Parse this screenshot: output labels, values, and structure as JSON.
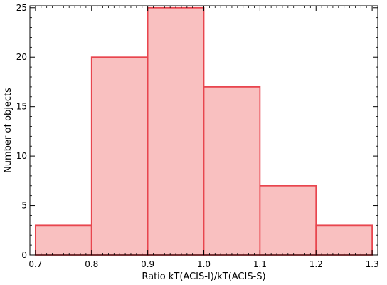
{
  "chart_data": {
    "type": "bar",
    "title": "",
    "xlabel": "Ratio kT(ACIS-I)/kT(ACIS-S)",
    "ylabel": "Number of objects",
    "bins": [
      {
        "x0": 0.7,
        "x1": 0.8,
        "value": 3
      },
      {
        "x0": 0.8,
        "x1": 0.9,
        "value": 20
      },
      {
        "x0": 0.9,
        "x1": 1.0,
        "value": 25
      },
      {
        "x0": 1.0,
        "x1": 1.1,
        "value": 17
      },
      {
        "x0": 1.1,
        "x1": 1.2,
        "value": 7
      },
      {
        "x0": 1.2,
        "x1": 1.3,
        "value": 3
      }
    ],
    "xlim": [
      0.69,
      1.31
    ],
    "ylim": [
      0,
      25.2
    ],
    "xticks": [
      "0.7",
      "0.8",
      "0.9",
      "1.0",
      "1.1",
      "1.2",
      "1.3"
    ],
    "yticks": [
      "0",
      "5",
      "10",
      "15",
      "20",
      "25"
    ],
    "grid": false,
    "bar_fill": "#f9c0c0",
    "bar_stroke": "#e8454e"
  }
}
